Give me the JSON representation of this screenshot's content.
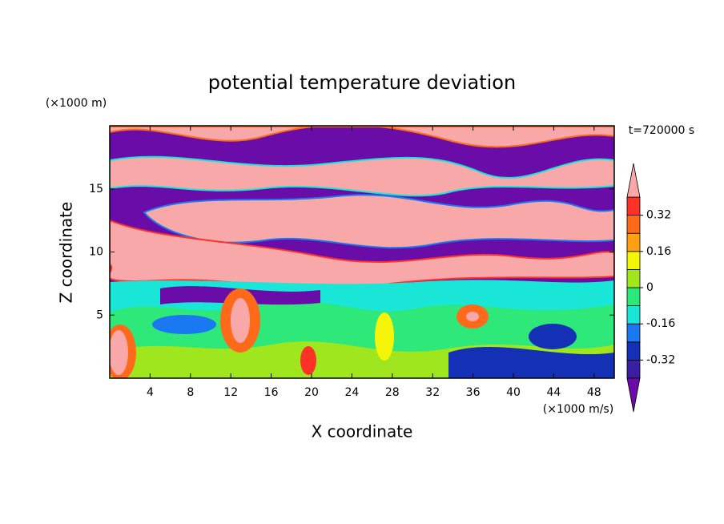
{
  "chart_data": {
    "type": "contour",
    "title": "potential temperature deviation",
    "x_label": "X coordinate",
    "y_label": "Z coordinate",
    "x_unit": "(×1000 m/s)",
    "y_unit": "(×1000 m)",
    "time_label": "t=720000 s",
    "xlim": [
      0,
      50
    ],
    "xticks": [
      4,
      8,
      12,
      16,
      20,
      24,
      28,
      32,
      36,
      40,
      44,
      48
    ],
    "ylim": [
      0,
      20
    ],
    "yticks": [
      5,
      10,
      15
    ],
    "levels": [
      -0.4,
      -0.32,
      -0.24,
      -0.16,
      -0.08,
      0,
      0.08,
      0.16,
      0.24,
      0.32,
      0.4
    ],
    "level_colors": [
      "#6a0ca8",
      "#3c1ea0",
      "#1430b4",
      "#1a78f0",
      "#19e6d6",
      "#2ee87a",
      "#a0e61e",
      "#f5f50a",
      "#ffa014",
      "#ff6a1a",
      "#ff3228",
      "#f8a8a8"
    ],
    "colorbar_ticks": [
      -0.32,
      -0.16,
      0,
      0.16,
      0.32
    ]
  }
}
